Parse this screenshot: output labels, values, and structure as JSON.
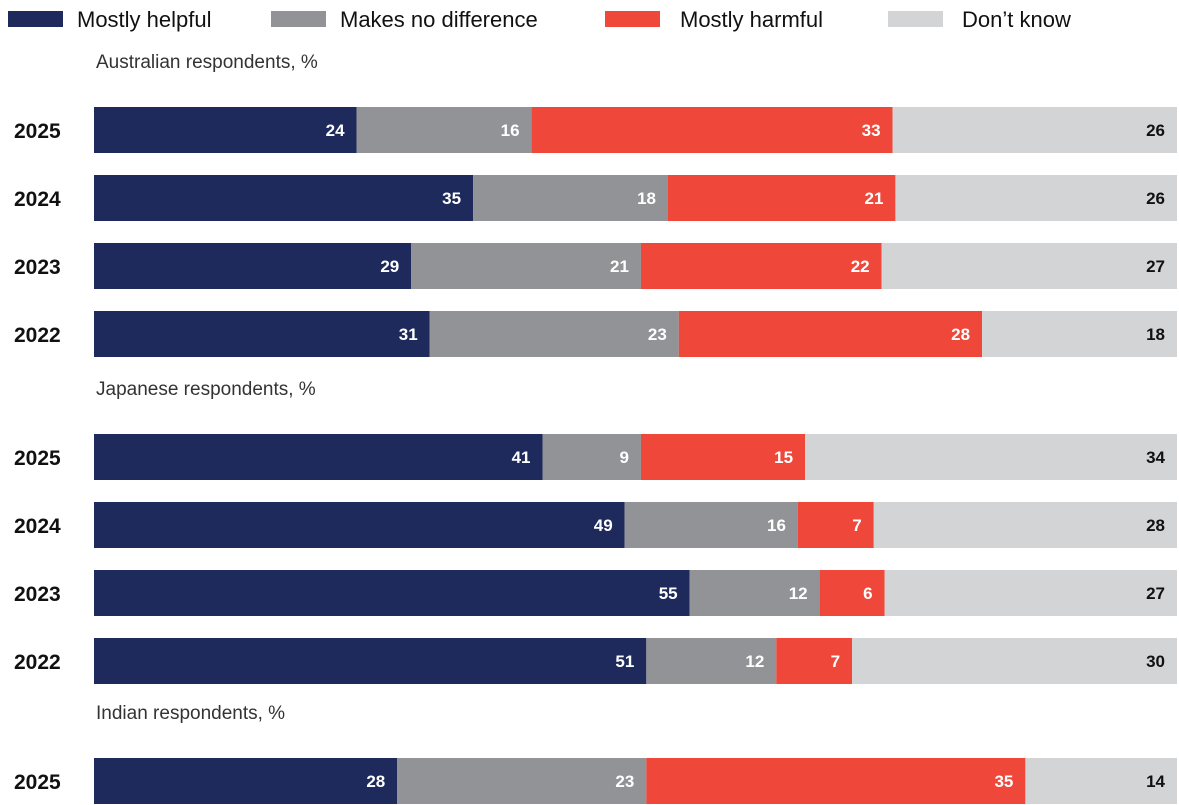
{
  "legend": [
    {
      "name": "Mostly helpful",
      "color": "#1f2a5c"
    },
    {
      "name": "Makes no difference",
      "color": "#929396"
    },
    {
      "name": "Mostly harmful",
      "color": "#ef4739"
    },
    {
      "name": "Don’t know",
      "color": "#d3d4d6"
    }
  ],
  "chart_data": {
    "type": "bar",
    "orientation": "horizontal",
    "stacked": true,
    "series_names": [
      "Mostly helpful",
      "Makes no difference",
      "Mostly harmful",
      "Don’t know"
    ],
    "colors": [
      "#1f2a5c",
      "#929396",
      "#ef4739",
      "#d3d4d6"
    ],
    "label_colors": [
      "#ffffff",
      "#ffffff",
      "#ffffff",
      "#111111"
    ],
    "legend_position": "top",
    "grid": false,
    "groups": [
      {
        "title": "Australian respondents, %",
        "rows": [
          {
            "year": "2025",
            "values": [
              24,
              16,
              33,
              26
            ]
          },
          {
            "year": "2024",
            "values": [
              35,
              18,
              21,
              26
            ]
          },
          {
            "year": "2023",
            "values": [
              29,
              21,
              22,
              27
            ]
          },
          {
            "year": "2022",
            "values": [
              31,
              23,
              28,
              18
            ]
          }
        ]
      },
      {
        "title": "Japanese respondents, %",
        "rows": [
          {
            "year": "2025",
            "values": [
              41,
              9,
              15,
              34
            ]
          },
          {
            "year": "2024",
            "values": [
              49,
              16,
              7,
              28
            ]
          },
          {
            "year": "2023",
            "values": [
              55,
              12,
              6,
              27
            ]
          },
          {
            "year": "2022",
            "values": [
              51,
              12,
              7,
              30
            ]
          }
        ]
      },
      {
        "title": "Indian respondents, %",
        "rows": [
          {
            "year": "2025",
            "values": [
              28,
              23,
              35,
              14
            ]
          }
        ]
      }
    ]
  }
}
